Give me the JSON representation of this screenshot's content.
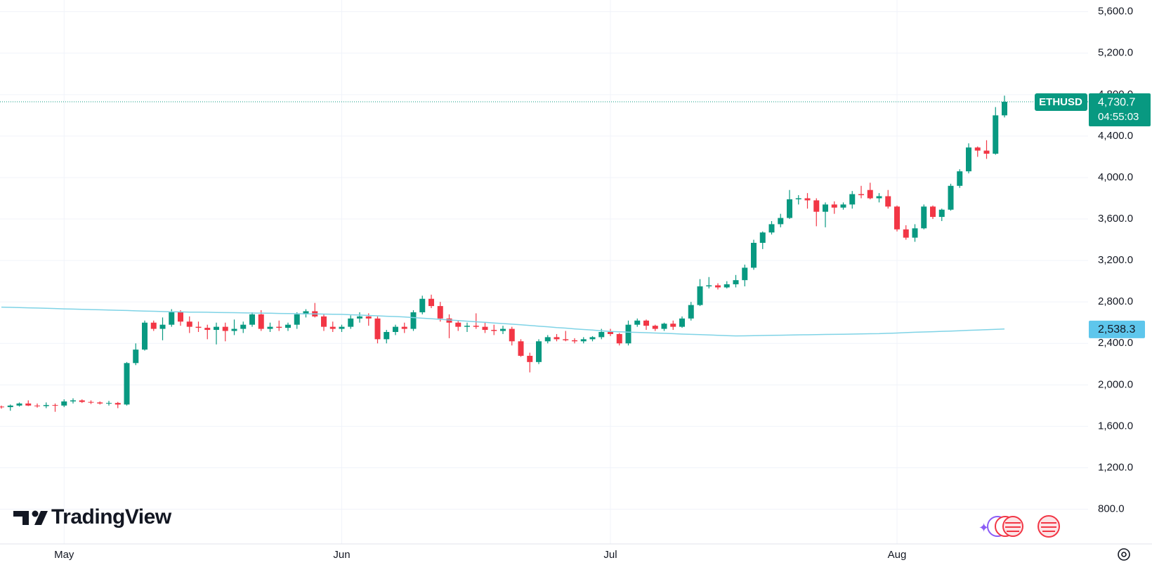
{
  "chart_data": {
    "type": "candlestick",
    "brand": "TradingView",
    "categories": [
      null,
      null,
      null,
      null,
      null,
      null,
      null,
      "May",
      null,
      null,
      null,
      null,
      null,
      null,
      null,
      null,
      null,
      null,
      null,
      null,
      null,
      null,
      null,
      null,
      null,
      null,
      null,
      null,
      null,
      null,
      null,
      null,
      null,
      null,
      null,
      null,
      null,
      null,
      "Jun",
      null,
      null,
      null,
      null,
      null,
      null,
      null,
      null,
      null,
      null,
      null,
      null,
      null,
      null,
      null,
      null,
      null,
      null,
      null,
      null,
      null,
      null,
      null,
      null,
      null,
      null,
      null,
      null,
      null,
      "Jul",
      null,
      null,
      null,
      null,
      null,
      null,
      null,
      null,
      null,
      null,
      null,
      null,
      null,
      null,
      null,
      null,
      null,
      null,
      null,
      null,
      null,
      null,
      null,
      null,
      null,
      null,
      null,
      null,
      null,
      null,
      null,
      "Aug",
      null,
      null,
      null,
      null,
      null,
      null,
      null,
      null,
      null,
      null,
      null,
      null,
      null
    ],
    "series": [
      {
        "name": "ETHUSD",
        "up_color": "#089981",
        "down_color": "#f23645",
        "open": [
          1790,
          1785,
          1800,
          1820,
          1800,
          1795,
          1805,
          1800,
          1840,
          1850,
          1835,
          1830,
          1820,
          1825,
          1810,
          2210,
          2340,
          2600,
          2540,
          2580,
          2700,
          2610,
          2560,
          2550,
          2530,
          2560,
          2520,
          2540,
          2580,
          2680,
          2540,
          2560,
          2550,
          2580,
          2680,
          2710,
          2660,
          2560,
          2540,
          2560,
          2640,
          2660,
          2640,
          2440,
          2510,
          2560,
          2540,
          2700,
          2830,
          2760,
          2640,
          2600,
          2560,
          2570,
          2560,
          2530,
          2520,
          2540,
          2420,
          2280,
          2220,
          2420,
          2460,
          2440,
          2430,
          2420,
          2440,
          2460,
          2510,
          2490,
          2400,
          2580,
          2620,
          2570,
          2540,
          2590,
          2560,
          2640,
          2770,
          2950,
          2960,
          2940,
          2970,
          3010,
          3130,
          3370,
          3470,
          3550,
          3610,
          3790,
          3800,
          3780,
          3670,
          3740,
          3710,
          3740,
          3840,
          3880,
          3800,
          3820,
          3720,
          3500,
          3420,
          3510,
          3720,
          3620,
          3690,
          3920,
          4060,
          4290,
          4260,
          4230,
          4600
        ],
        "high": [
          1800,
          1810,
          1830,
          1850,
          1820,
          1830,
          1820,
          1860,
          1870,
          1860,
          1850,
          1840,
          1845,
          1835,
          2220,
          2400,
          2620,
          2620,
          2650,
          2730,
          2720,
          2660,
          2610,
          2580,
          2600,
          2600,
          2630,
          2610,
          2700,
          2720,
          2600,
          2620,
          2600,
          2700,
          2730,
          2790,
          2680,
          2610,
          2580,
          2670,
          2700,
          2690,
          2660,
          2530,
          2580,
          2600,
          2720,
          2860,
          2870,
          2800,
          2680,
          2620,
          2600,
          2690,
          2600,
          2580,
          2570,
          2560,
          2440,
          2310,
          2440,
          2480,
          2490,
          2520,
          2450,
          2460,
          2470,
          2540,
          2540,
          2500,
          2620,
          2640,
          2630,
          2580,
          2600,
          2620,
          2660,
          2800,
          3020,
          3040,
          2980,
          3000,
          3060,
          3160,
          3400,
          3480,
          3580,
          3650,
          3880,
          3830,
          3850,
          3800,
          3760,
          3770,
          3760,
          3870,
          3920,
          3950,
          3850,
          3880,
          3730,
          3540,
          3550,
          3740,
          3730,
          3700,
          3940,
          4080,
          4330,
          4300,
          4360,
          4680,
          4790
        ],
        "low": [
          1770,
          1750,
          1790,
          1795,
          1780,
          1775,
          1740,
          1785,
          1820,
          1825,
          1815,
          1810,
          1800,
          1775,
          1800,
          2190,
          2330,
          2520,
          2430,
          2560,
          2570,
          2500,
          2510,
          2440,
          2390,
          2420,
          2480,
          2500,
          2560,
          2520,
          2510,
          2520,
          2520,
          2540,
          2650,
          2650,
          2520,
          2510,
          2510,
          2540,
          2600,
          2570,
          2400,
          2400,
          2480,
          2500,
          2520,
          2680,
          2740,
          2610,
          2450,
          2520,
          2510,
          2540,
          2500,
          2480,
          2490,
          2380,
          2270,
          2120,
          2200,
          2400,
          2420,
          2420,
          2400,
          2400,
          2420,
          2440,
          2470,
          2380,
          2380,
          2560,
          2530,
          2520,
          2520,
          2530,
          2550,
          2620,
          2760,
          2930,
          2920,
          2930,
          2940,
          2950,
          3110,
          3310,
          3450,
          3520,
          3600,
          3740,
          3700,
          3530,
          3520,
          3650,
          3690,
          3700,
          3800,
          3790,
          3760,
          3700,
          3480,
          3400,
          3380,
          3500,
          3600,
          3580,
          3680,
          3900,
          4040,
          4200,
          4180,
          4220,
          4580
        ],
        "close": [
          1785,
          1800,
          1820,
          1800,
          1795,
          1805,
          1800,
          1840,
          1850,
          1835,
          1830,
          1820,
          1825,
          1810,
          2210,
          2340,
          2600,
          2540,
          2580,
          2700,
          2610,
          2560,
          2550,
          2530,
          2560,
          2520,
          2540,
          2580,
          2680,
          2540,
          2560,
          2550,
          2580,
          2680,
          2710,
          2660,
          2560,
          2540,
          2560,
          2640,
          2660,
          2640,
          2440,
          2510,
          2560,
          2540,
          2700,
          2830,
          2760,
          2640,
          2600,
          2560,
          2570,
          2560,
          2530,
          2520,
          2540,
          2420,
          2280,
          2220,
          2420,
          2460,
          2440,
          2430,
          2420,
          2440,
          2460,
          2510,
          2490,
          2400,
          2580,
          2620,
          2570,
          2540,
          2590,
          2560,
          2640,
          2770,
          2950,
          2960,
          2940,
          2970,
          3010,
          3130,
          3370,
          3470,
          3550,
          3610,
          3790,
          3800,
          3780,
          3670,
          3740,
          3710,
          3740,
          3840,
          3830,
          3800,
          3820,
          3720,
          3500,
          3420,
          3510,
          3720,
          3620,
          3690,
          3920,
          4060,
          4290,
          4260,
          4230,
          4600,
          4730.7
        ],
        "price_label": "4,730.7",
        "countdown": "04:55:03"
      }
    ],
    "overlay": {
      "color": "#7fd3e6",
      "values": [
        2750,
        2748,
        2745,
        2743,
        2741,
        2738,
        2736,
        2733,
        2731,
        2729,
        2726,
        2724,
        2722,
        2719,
        2717,
        2714,
        2712,
        2710,
        2707,
        2705,
        2704,
        2702,
        2701,
        2700,
        2698,
        2697,
        2696,
        2694,
        2693,
        2692,
        2691,
        2689,
        2688,
        2687,
        2685,
        2684,
        2683,
        2681,
        2680,
        2676,
        2673,
        2669,
        2666,
        2662,
        2659,
        2655,
        2649,
        2643,
        2638,
        2632,
        2626,
        2620,
        2614,
        2608,
        2603,
        2597,
        2591,
        2585,
        2579,
        2572,
        2566,
        2560,
        2553,
        2547,
        2540,
        2534,
        2528,
        2521,
        2515,
        2512,
        2509,
        2506,
        2503,
        2500,
        2497,
        2494,
        2490,
        2487,
        2484,
        2481,
        2478,
        2475,
        2472,
        2473,
        2475,
        2476,
        2478,
        2479,
        2480,
        2482,
        2483,
        2484,
        2486,
        2487,
        2488,
        2490,
        2491,
        2493,
        2494,
        2497,
        2500,
        2504,
        2507,
        2510,
        2513,
        2516,
        2519,
        2522,
        2526,
        2529,
        2532,
        2535,
        2538.3
      ],
      "value_label": "2,538.3"
    },
    "ylim": [
      465,
      5713
    ],
    "yticks": [
      {
        "value": 800,
        "label": "800.0"
      },
      {
        "value": 1200,
        "label": "1,200.0"
      },
      {
        "value": 1600,
        "label": "1,600.0"
      },
      {
        "value": 2000,
        "label": "2,000.0"
      },
      {
        "value": 2400,
        "label": "2,400.0"
      },
      {
        "value": 2800,
        "label": "2,800.0"
      },
      {
        "value": 3200,
        "label": "3,200.0"
      },
      {
        "value": 3600,
        "label": "3,600.0"
      },
      {
        "value": 4000,
        "label": "4,000.0"
      },
      {
        "value": 4400,
        "label": "4,400.0"
      },
      {
        "value": 4800,
        "label": "4,800.0"
      },
      {
        "value": 5200,
        "label": "5,200.0"
      },
      {
        "value": 5600,
        "label": "5,600.0"
      }
    ],
    "grid": true
  }
}
